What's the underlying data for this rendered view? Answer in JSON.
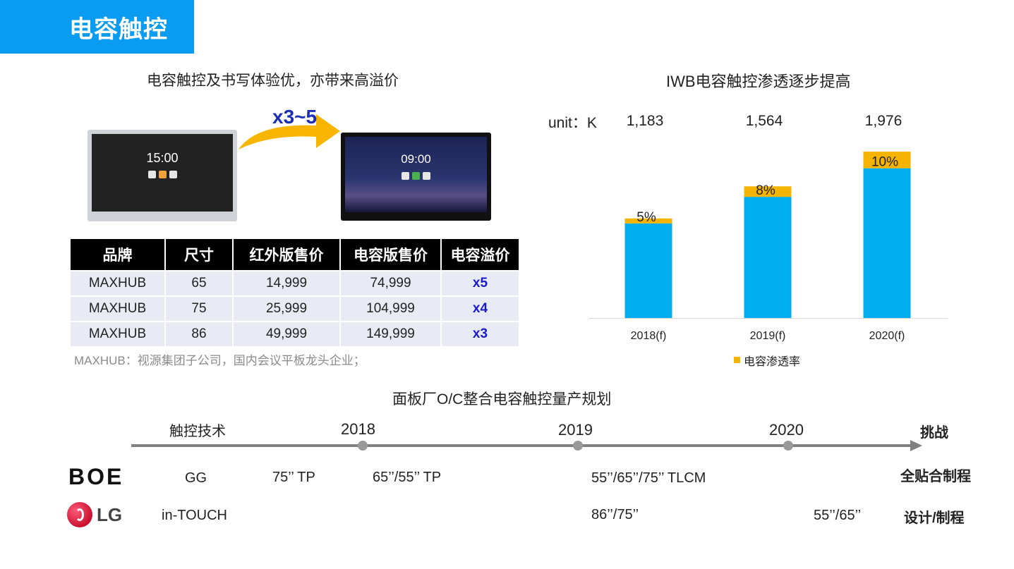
{
  "header": {
    "title": "电容触控"
  },
  "left_section": {
    "subtitle": "电容触控及书写体验优，亦带来高溢价",
    "multiplier": "x3~5",
    "device_old_time": "15:00",
    "device_new_time": "09:00",
    "table": {
      "headers": [
        "品牌",
        "尺寸",
        "红外版售价",
        "电容版售价",
        "电容溢价"
      ],
      "rows": [
        [
          "MAXHUB",
          "65",
          "14,999",
          "74,999",
          "x5"
        ],
        [
          "MAXHUB",
          "75",
          "25,999",
          "104,999",
          "x4"
        ],
        [
          "MAXHUB",
          "86",
          "49,999",
          "149,999",
          "x3"
        ]
      ]
    },
    "note": "MAXHUB：视源集团子公司，国内会议平板龙头企业；"
  },
  "chart_data": {
    "type": "bar",
    "title": "IWB电容触控渗透逐步提高",
    "unit_label": "unit：K",
    "categories": [
      "2018(f)",
      "2019(f)",
      "2020(f)"
    ],
    "totals": [
      1183,
      1564,
      1976
    ],
    "total_labels": [
      "1,183",
      "1,564",
      "1,976"
    ],
    "capacitive_share_labels": [
      "5%",
      "8%",
      "10%"
    ],
    "capacitive_share": [
      5,
      8,
      10
    ],
    "legend": "电容渗透率",
    "legend_position": "bottom",
    "colors": {
      "base": "#00aeef",
      "capacitive": "#f5b400"
    }
  },
  "timeline": {
    "title": "面板厂O/C整合电容触控量产规划",
    "tech_header": "触控技术",
    "years": [
      "2018",
      "2019",
      "2020"
    ],
    "challenge_header": "挑战",
    "rows": [
      {
        "logo": "BOE",
        "tech": "GG",
        "items": [
          "75’’ TP",
          "65’’/55’’ TP",
          "55’’/65’’/75’’ TLCM"
        ],
        "challenge": "全贴合制程"
      },
      {
        "logo": "LG",
        "tech": "in-TOUCH",
        "items": [
          "86’’/75’’",
          "55’’/65’’"
        ],
        "challenge": "设计/制程"
      }
    ]
  }
}
